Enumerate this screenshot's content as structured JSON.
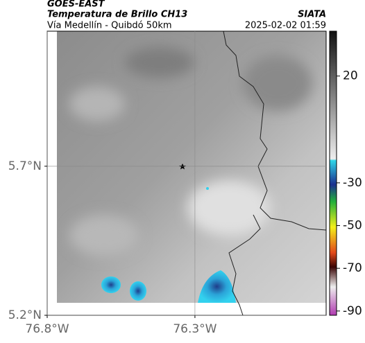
{
  "header": {
    "source": "GOES-EAST",
    "title": "Temperatura de Brillo CH13",
    "region": "Vía Medellín - Quibdó 50km",
    "agency": "SIATA",
    "datetime": "2025-02-02 01:59"
  },
  "map": {
    "xlim": [
      -76.8,
      -75.856
    ],
    "ylim": [
      5.2,
      6.153
    ],
    "xticks": [
      {
        "value": -76.8,
        "label": "76.8°W"
      },
      {
        "value": -76.3,
        "label": "76.3°W"
      }
    ],
    "yticks": [
      {
        "value": 5.2,
        "label": "5.2°N"
      },
      {
        "value": 5.7,
        "label": "5.7°N"
      }
    ],
    "grid": true
  },
  "colorbar": {
    "lim": [
      41,
      -92
    ],
    "ticks": [
      20,
      -30,
      -50,
      -70,
      -90
    ]
  }
}
